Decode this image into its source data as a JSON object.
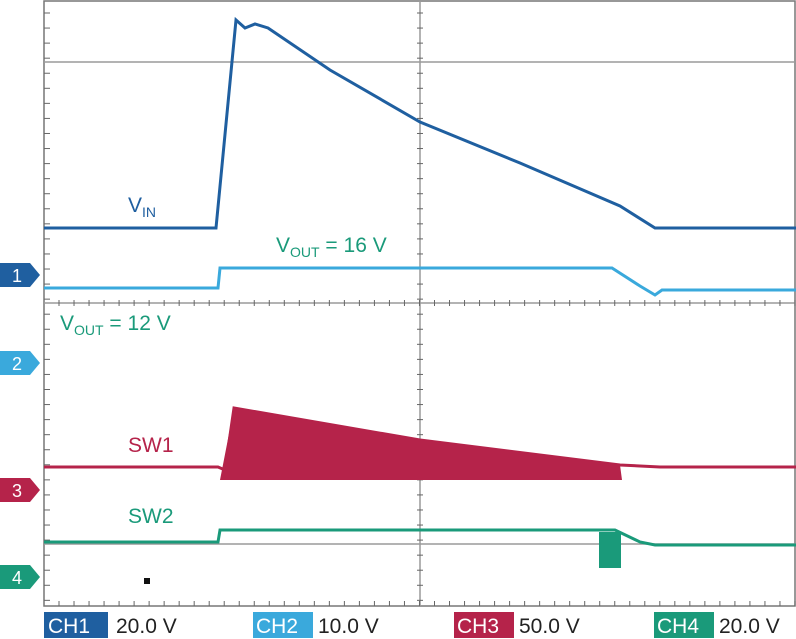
{
  "waveform_labels": [
    {
      "main": "V",
      "sub": "IN",
      "rest": ""
    },
    {
      "main": "V",
      "sub": "OUT",
      "rest": " = 16 V"
    },
    {
      "main": "V",
      "sub": "OUT",
      "rest": " = 12 V"
    },
    {
      "main": "SW1"
    },
    {
      "main": "SW2"
    }
  ],
  "channel_markers": [
    "1",
    "2",
    "3",
    "4"
  ],
  "channels": [
    {
      "name": "CH1",
      "scale": "20.0 V"
    },
    {
      "name": "CH2",
      "scale": "10.0 V"
    },
    {
      "name": "CH3",
      "scale": "50.0 V"
    },
    {
      "name": "CH4",
      "scale": "20.0 V"
    }
  ]
}
